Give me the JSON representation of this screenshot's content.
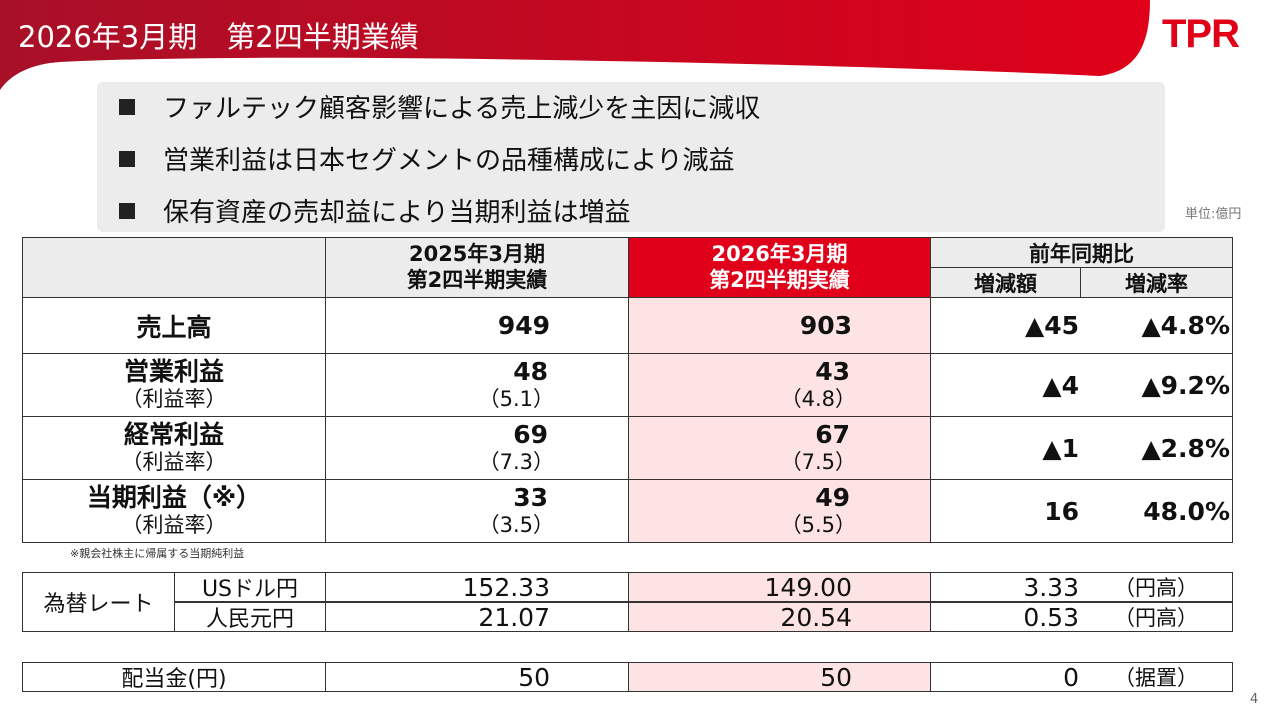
{
  "header": {
    "title": "2026年3月期　第2四半期業績",
    "logo": "TPR",
    "accent": "#e0001a"
  },
  "bullets": [
    "ファルテック顧客影響による売上減少を主因に減収",
    "営業利益は日本セグメントの品種構成により減益",
    "保有資産の売却益により当期利益は増益"
  ],
  "unit": "単位:億円",
  "table": {
    "headers": {
      "prev": [
        "2025年3月期",
        "第2四半期実績"
      ],
      "curr": [
        "2026年3月期",
        "第2四半期実績"
      ],
      "yoy": "前年同期比",
      "diff": "増減額",
      "rate": "増減率"
    },
    "rows": [
      {
        "label": "売上高",
        "prev": "949",
        "curr": "903",
        "diff": "▲45",
        "rate": "▲4.8%"
      },
      {
        "label": "営業利益",
        "sub": "（利益率）",
        "prev": "48",
        "prev_sub": "（5.1）",
        "curr": "43",
        "curr_sub": "（4.8）",
        "diff": "▲4",
        "rate": "▲9.2%"
      },
      {
        "label": "経常利益",
        "sub": "（利益率）",
        "prev": "69",
        "prev_sub": "（7.3）",
        "curr": "67",
        "curr_sub": "（7.5）",
        "diff": "▲1",
        "rate": "▲2.8%"
      },
      {
        "label": "当期利益（※）",
        "sub": "（利益率）",
        "prev": "33",
        "prev_sub": "（3.5）",
        "curr": "49",
        "curr_sub": "（5.5）",
        "diff": "16",
        "rate": "48.0%"
      }
    ],
    "footnote": "※親会社株主に帰属する当期純利益"
  },
  "fx": {
    "label": "為替レート",
    "rows": [
      {
        "label": "USドル円",
        "prev": "152.33",
        "curr": "149.00",
        "diff": "3.33",
        "note": "（円高）"
      },
      {
        "label": "人民元円",
        "prev": "21.07",
        "curr": "20.54",
        "diff": "0.53",
        "note": "（円高）"
      }
    ]
  },
  "dividend": {
    "label": "配当金(円)",
    "prev": "50",
    "curr": "50",
    "diff": "0",
    "note": "（据置）"
  },
  "page_number": "4"
}
